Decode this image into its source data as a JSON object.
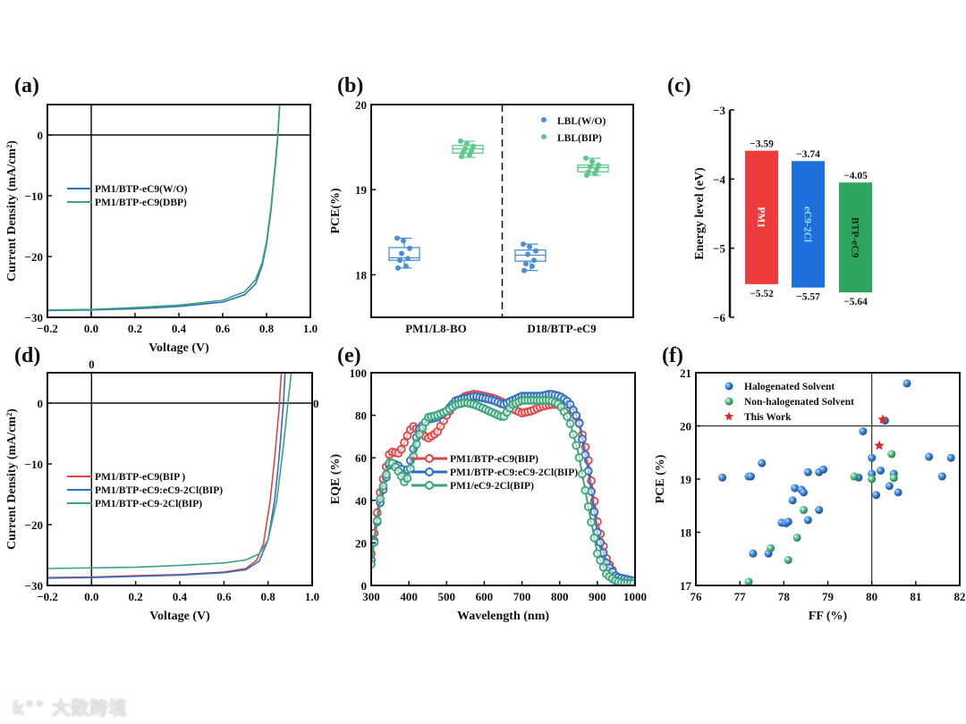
{
  "panel_labels": [
    "(a)",
    "(b)",
    "(c)",
    "(d)",
    "(e)",
    "(f)"
  ],
  "watermark": {
    "logo": "k°°",
    "text": "大数跨境"
  },
  "colors": {
    "blue": "#2f6fc0",
    "green": "#3aa57a",
    "red": "#e04545",
    "box_blue": "#4a8fd6",
    "box_green": "#5cc98a",
    "bar_red": "#ee3b3b",
    "bar_blue": "#1e6fdc",
    "bar_green": "#2fa55f"
  },
  "chart_data": [
    {
      "type": "line",
      "title": "(a)",
      "xlabel": "Voltage (V)",
      "ylabel": "Current Density (mA/cm²)",
      "xlim": [
        -0.2,
        1.0
      ],
      "ylim": [
        -30,
        5
      ],
      "xticks": [
        -0.2,
        0.0,
        0.2,
        0.4,
        0.6,
        0.8,
        1.0
      ],
      "xtick_labels": [
        "−0.2",
        "0.0",
        "0.2",
        "0.4",
        "0.6",
        "0.8",
        "1.0"
      ],
      "yticks": [
        -30,
        -20,
        -10,
        0
      ],
      "ytick_labels": [
        "−30",
        "−20",
        "−10",
        "0"
      ],
      "legend": "center-left",
      "series": [
        {
          "name": "PM1/BTP-eC9(W/O)",
          "color": "#2f6fc0",
          "x": [
            -0.2,
            0.0,
            0.2,
            0.4,
            0.6,
            0.7,
            0.75,
            0.78,
            0.8,
            0.82,
            0.84,
            0.85,
            0.86
          ],
          "y": [
            -28.9,
            -28.8,
            -28.6,
            -28.2,
            -27.5,
            -26.3,
            -24.5,
            -21.5,
            -18,
            -12.5,
            -5,
            -1,
            5
          ]
        },
        {
          "name": "PM1/BTP-eC9(DBP)",
          "color": "#3aa57a",
          "x": [
            -0.2,
            0.0,
            0.2,
            0.4,
            0.6,
            0.7,
            0.75,
            0.78,
            0.8,
            0.82,
            0.84,
            0.85,
            0.86
          ],
          "y": [
            -28.8,
            -28.7,
            -28.4,
            -28.0,
            -27.2,
            -25.8,
            -23.8,
            -21,
            -17.5,
            -12,
            -4.5,
            -0.5,
            5
          ]
        }
      ]
    },
    {
      "type": "box",
      "title": "(b)",
      "xlabel": "",
      "ylabel": "PCE(%)",
      "ylim": [
        17.5,
        20
      ],
      "yticks": [
        18,
        19,
        20
      ],
      "ytick_labels": [
        "18",
        "19",
        "20"
      ],
      "categories": [
        "PM1/L8-BO",
        "D18/BTP-eC9"
      ],
      "legend": "top-right",
      "series": [
        {
          "name": "LBL(W/O)",
          "color": "#4a8fd6",
          "boxes": [
            {
              "whisker_low": 18.08,
              "q1": 18.17,
              "median": 18.2,
              "q3": 18.32,
              "whisker_high": 18.43,
              "points": [
                18.43,
                18.4,
                18.31,
                18.25,
                18.19,
                18.17,
                18.1,
                18.08
              ]
            },
            {
              "whisker_low": 18.05,
              "q1": 18.16,
              "median": 18.23,
              "q3": 18.29,
              "whisker_high": 18.36,
              "points": [
                18.36,
                18.33,
                18.28,
                18.24,
                18.17,
                18.13,
                18.1,
                18.05
              ]
            }
          ]
        },
        {
          "name": "LBL(BIP)",
          "color": "#5cc98a",
          "boxes": [
            {
              "whisker_low": 19.38,
              "q1": 19.43,
              "median": 19.48,
              "q3": 19.52,
              "whisker_high": 19.57,
              "points": [
                19.57,
                19.54,
                19.51,
                19.48,
                19.46,
                19.44,
                19.41,
                19.39
              ]
            },
            {
              "whisker_low": 19.17,
              "q1": 19.21,
              "median": 19.26,
              "q3": 19.29,
              "whisker_high": 19.37,
              "points": [
                19.37,
                19.33,
                19.29,
                19.27,
                19.24,
                19.21,
                19.19,
                19.17
              ]
            }
          ]
        }
      ]
    },
    {
      "type": "bar",
      "title": "(c)",
      "ylabel": "Energy level (eV)",
      "ylim": [
        -6,
        -3
      ],
      "yticks": [
        -3,
        -4,
        -5,
        -6
      ],
      "ytick_labels": [
        "−3",
        "−4",
        "−5",
        "−6"
      ],
      "categories": [
        "PM1",
        "eC9-2Cl",
        "BTP-eC9"
      ],
      "lumo": [
        -3.59,
        -3.74,
        -4.05
      ],
      "homo": [
        -5.52,
        -5.57,
        -5.64
      ],
      "lumo_labels": [
        "−3.59",
        "−3.74",
        "−4.05"
      ],
      "homo_labels": [
        "−5.52",
        "−5.57",
        "−5.64"
      ],
      "bar_colors": [
        "#ee3b3b",
        "#1e6fdc",
        "#2fa55f"
      ],
      "label_colors": [
        "#ffffff",
        "#8fe3ff",
        "#0b2a12"
      ]
    },
    {
      "type": "line",
      "title": "(d)",
      "xlabel": "Voltage (V)",
      "ylabel": "Current Density (mA/cm²)",
      "xlim": [
        -0.2,
        1.0
      ],
      "ylim": [
        -30,
        5
      ],
      "xticks": [
        -0.2,
        0.0,
        0.2,
        0.4,
        0.6,
        0.8,
        1.0
      ],
      "xtick_labels": [
        "−0.2",
        "0.0",
        "0.2",
        "0.4",
        "0.6",
        "0.8",
        "1.0"
      ],
      "yticks": [
        -30,
        -20,
        -10,
        0
      ],
      "ytick_labels": [
        "−30",
        "−20",
        "−10",
        "0"
      ],
      "zero_annotations": [
        "0",
        "0"
      ],
      "legend": "center-left",
      "series": [
        {
          "name": "PM1/BTP-eC9(BIP )",
          "color": "#e04545",
          "x": [
            -0.2,
            0.0,
            0.2,
            0.4,
            0.6,
            0.7,
            0.75,
            0.78,
            0.81,
            0.83,
            0.85,
            0.86
          ],
          "y": [
            -28.7,
            -28.6,
            -28.4,
            -28.2,
            -27.8,
            -27.2,
            -25.8,
            -23,
            -16,
            -9,
            -1,
            5
          ]
        },
        {
          "name": "PM1/BTP-eC9:eC9-2Cl(BIP)",
          "color": "#2f6fc0",
          "x": [
            -0.2,
            0.0,
            0.2,
            0.4,
            0.6,
            0.7,
            0.76,
            0.8,
            0.83,
            0.85,
            0.87,
            0.877
          ],
          "y": [
            -28.8,
            -28.7,
            -28.5,
            -28.3,
            -27.9,
            -27.4,
            -26,
            -22.5,
            -16,
            -9,
            0,
            5
          ]
        },
        {
          "name": "PM1/BTP-eC9-2Cl(BIP)",
          "color": "#3aa57a",
          "x": [
            -0.2,
            0.0,
            0.2,
            0.4,
            0.6,
            0.7,
            0.76,
            0.8,
            0.84,
            0.87,
            0.89,
            0.905
          ],
          "y": [
            -27.2,
            -27.1,
            -27.0,
            -26.7,
            -26.3,
            -25.8,
            -24.8,
            -22.5,
            -16,
            -7,
            0,
            5
          ]
        }
      ]
    },
    {
      "type": "line",
      "title": "(e)",
      "xlabel": "Wavelength (nm)",
      "ylabel": "EQE (%)",
      "xlim": [
        300,
        1000
      ],
      "ylim": [
        0,
        100
      ],
      "xticks": [
        300,
        400,
        500,
        600,
        700,
        800,
        900,
        1000
      ],
      "xtick_labels": [
        "300",
        "400",
        "500",
        "600",
        "700",
        "800",
        "900",
        "1000"
      ],
      "yticks": [
        0,
        20,
        40,
        60,
        80,
        100
      ],
      "ytick_labels": [
        "0",
        "20",
        "40",
        "60",
        "80",
        "100"
      ],
      "legend": "center-left",
      "markers": true,
      "series": [
        {
          "name": "PM1/BTP-eC9(BIP)",
          "color": "#e04545",
          "x": [
            300,
            325,
            350,
            375,
            400,
            410,
            425,
            450,
            475,
            500,
            525,
            550,
            575,
            600,
            625,
            650,
            675,
            700,
            725,
            750,
            775,
            800,
            825,
            850,
            875,
            900,
            925,
            950,
            975,
            1000
          ],
          "y": [
            15,
            45,
            63,
            62,
            72,
            75,
            73,
            69,
            72,
            80,
            86,
            89,
            90,
            89,
            88,
            86,
            83,
            81,
            82,
            84,
            85,
            85,
            84,
            78,
            60,
            30,
            12,
            4,
            2,
            2
          ]
        },
        {
          "name": "PM1/BTP-eC9:eC9-2Cl(BIP)",
          "color": "#2f6fc0",
          "x": [
            300,
            325,
            350,
            375,
            390,
            400,
            425,
            450,
            475,
            500,
            525,
            550,
            575,
            600,
            625,
            650,
            675,
            700,
            725,
            750,
            775,
            800,
            825,
            850,
            875,
            900,
            925,
            950,
            975,
            1000
          ],
          "y": [
            12,
            40,
            58,
            56,
            52,
            56,
            73,
            78,
            79,
            82,
            87,
            88,
            89,
            88,
            87,
            85,
            87,
            89,
            89,
            89,
            90,
            89,
            86,
            78,
            55,
            25,
            10,
            4,
            3,
            2
          ]
        },
        {
          "name": "PM1/eC9-2Cl(BIP)",
          "color": "#3aa57a",
          "x": [
            300,
            325,
            350,
            375,
            390,
            400,
            425,
            450,
            475,
            500,
            525,
            550,
            575,
            600,
            625,
            650,
            675,
            700,
            725,
            750,
            775,
            800,
            825,
            850,
            875,
            900,
            925,
            950,
            975,
            1000
          ],
          "y": [
            10,
            42,
            59,
            53,
            48,
            52,
            70,
            79,
            80,
            82,
            85,
            86,
            85,
            83,
            81,
            79,
            85,
            87,
            87,
            87,
            87,
            85,
            78,
            62,
            38,
            15,
            5,
            2,
            1,
            1
          ]
        }
      ]
    },
    {
      "type": "scatter",
      "title": "(f)",
      "xlabel": "FF (%)",
      "ylabel": "PCE (%)",
      "xlim": [
        76,
        82
      ],
      "ylim": [
        17,
        21
      ],
      "xticks": [
        76,
        77,
        78,
        79,
        80,
        81,
        82
      ],
      "xtick_labels": [
        "76",
        "77",
        "78",
        "79",
        "80",
        "81",
        "82"
      ],
      "yticks": [
        17,
        18,
        19,
        20,
        21
      ],
      "ytick_labels": [
        "17",
        "18",
        "19",
        "20",
        "21"
      ],
      "reference_lines": {
        "x": 80,
        "y": 20
      },
      "legend": "top-left",
      "series": [
        {
          "name": "Halogenated Solvent",
          "color": "#2f6fc0",
          "marker": "circle",
          "x": [
            76.6,
            77.2,
            77.25,
            77.5,
            77.3,
            77.65,
            77.95,
            78.05,
            78.1,
            78.2,
            78.25,
            78.4,
            78.45,
            78.55,
            78.55,
            78.8,
            78.8,
            78.9,
            79.7,
            79.8,
            80.0,
            80.0,
            80.1,
            80.2,
            80.3,
            80.4,
            80.5,
            80.6,
            80.8,
            81.3,
            81.6,
            81.8
          ],
          "y": [
            19.03,
            19.05,
            19.05,
            19.3,
            17.6,
            17.6,
            18.18,
            18.17,
            18.2,
            18.6,
            18.83,
            18.8,
            18.75,
            18.23,
            19.13,
            18.42,
            19.13,
            19.18,
            19.03,
            19.9,
            19.4,
            19.1,
            18.7,
            19.16,
            20.1,
            18.87,
            19.1,
            18.75,
            20.8,
            19.42,
            19.05,
            19.4
          ]
        },
        {
          "name": "Non-halogenated Solvent",
          "color": "#3aa57a",
          "marker": "circle",
          "x": [
            77.2,
            77.7,
            78.1,
            78.3,
            78.45,
            79.6,
            80.0,
            80.45,
            80.5
          ],
          "y": [
            17.07,
            17.7,
            17.48,
            17.9,
            18.42,
            19.05,
            19.0,
            19.47,
            19.02
          ]
        },
        {
          "name": "This Work",
          "color": "#d23030",
          "marker": "star",
          "x": [
            80.25,
            80.17
          ],
          "y": [
            20.12,
            19.63
          ]
        }
      ]
    }
  ]
}
